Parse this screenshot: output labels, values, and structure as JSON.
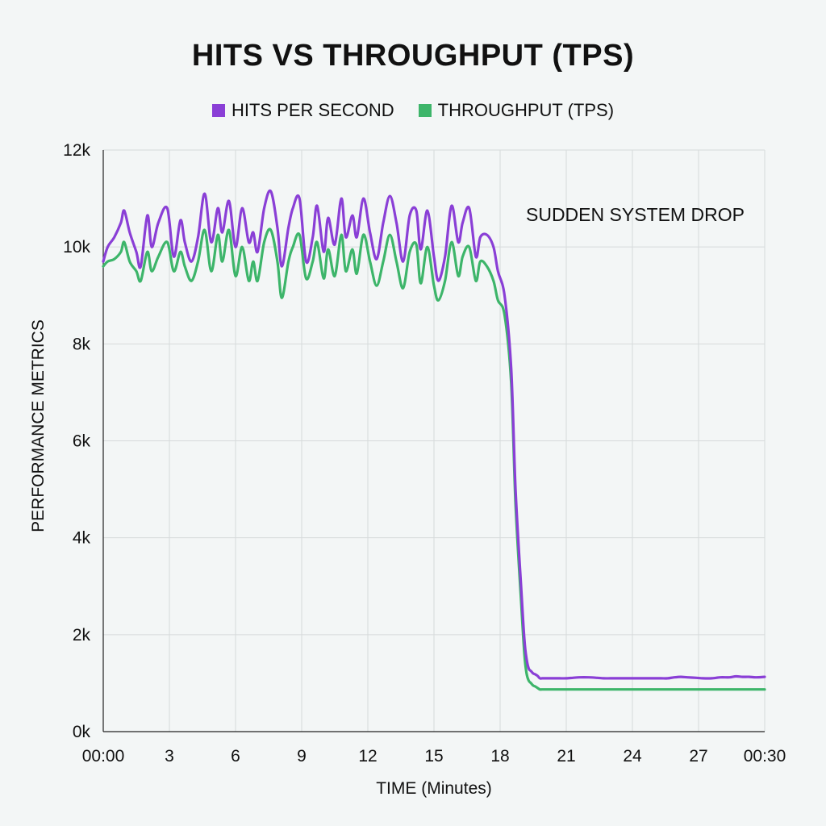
{
  "chart_data": {
    "type": "line",
    "title": "HITS VS THROUGHPUT (TPS)",
    "xlabel": "TIME (Minutes)",
    "ylabel": "PERFORMANCE METRICS",
    "x_ticks": [
      "00:00",
      "3",
      "6",
      "9",
      "12",
      "15",
      "18",
      "21",
      "24",
      "27",
      "00:30"
    ],
    "y_ticks": [
      "0k",
      "2k",
      "4k",
      "6k",
      "8k",
      "10k",
      "12k"
    ],
    "xlim": [
      0,
      30
    ],
    "ylim": [
      0,
      12000
    ],
    "grid": true,
    "legend_position": "top-center",
    "annotation": "SUDDEN SYSTEM DROP",
    "series": [
      {
        "name": "HITS PER SECOND",
        "color": "#8a3fd6",
        "x": [
          0,
          0.2,
          0.5,
          0.8,
          0.95,
          1.2,
          1.5,
          1.7,
          2.0,
          2.2,
          2.5,
          2.9,
          3.2,
          3.5,
          3.7,
          4.0,
          4.3,
          4.6,
          4.9,
          5.2,
          5.4,
          5.7,
          6.0,
          6.3,
          6.6,
          6.8,
          7.0,
          7.3,
          7.6,
          7.9,
          8.1,
          8.4,
          8.6,
          8.9,
          9.2,
          9.5,
          9.7,
          10.0,
          10.2,
          10.5,
          10.8,
          11.0,
          11.3,
          11.5,
          11.8,
          12.1,
          12.4,
          12.7,
          13.0,
          13.3,
          13.6,
          13.9,
          14.2,
          14.4,
          14.7,
          15.0,
          15.2,
          15.5,
          15.8,
          16.1,
          16.3,
          16.6,
          16.9,
          17.1,
          17.4,
          17.7,
          17.9,
          18.2,
          18.5,
          18.7,
          18.95,
          19.1,
          19.2,
          19.3,
          19.4,
          19.5,
          19.6,
          19.7,
          19.8,
          19.9,
          20.0,
          20.2,
          20.5,
          20.7,
          21.0,
          21.3,
          21.6,
          22.0,
          22.4,
          22.7,
          23.0,
          23.3,
          23.7,
          24.0,
          24.3,
          24.6,
          25.0,
          25.3,
          25.6,
          25.9,
          26.2,
          26.5,
          26.9,
          27.2,
          27.6,
          28.0,
          28.4,
          28.7,
          29.0,
          29.3,
          29.6,
          30.0
        ],
        "y": [
          9700,
          10000,
          10200,
          10500,
          10750,
          10300,
          9900,
          9600,
          10650,
          10000,
          10500,
          10800,
          9800,
          10550,
          10100,
          9700,
          10200,
          11100,
          10100,
          10800,
          10300,
          10950,
          10000,
          10800,
          10100,
          10300,
          9900,
          10800,
          11150,
          10400,
          9600,
          10400,
          10800,
          11000,
          9700,
          10200,
          10850,
          9900,
          10600,
          10050,
          11000,
          10200,
          10650,
          10200,
          11000,
          10300,
          9750,
          10500,
          11050,
          10500,
          9700,
          10650,
          10750,
          9950,
          10750,
          9800,
          9300,
          9800,
          10850,
          10100,
          10500,
          10800,
          9800,
          10200,
          10250,
          10000,
          9500,
          9000,
          7500,
          5000,
          3000,
          1900,
          1500,
          1300,
          1250,
          1200,
          1180,
          1150,
          1100,
          1100,
          1100,
          1100,
          1100,
          1100,
          1100,
          1110,
          1120,
          1120,
          1110,
          1100,
          1100,
          1100,
          1100,
          1100,
          1100,
          1100,
          1100,
          1100,
          1100,
          1120,
          1130,
          1120,
          1110,
          1100,
          1100,
          1120,
          1120,
          1140,
          1130,
          1130,
          1120,
          1130
        ]
      },
      {
        "name": "THROUGHPUT (TPS)",
        "color": "#3db56a",
        "x": [
          0,
          0.2,
          0.5,
          0.8,
          0.95,
          1.2,
          1.5,
          1.7,
          2.0,
          2.2,
          2.5,
          2.9,
          3.2,
          3.5,
          3.7,
          4.0,
          4.3,
          4.6,
          4.9,
          5.2,
          5.4,
          5.7,
          6.0,
          6.3,
          6.6,
          6.8,
          7.0,
          7.3,
          7.6,
          7.9,
          8.1,
          8.4,
          8.6,
          8.9,
          9.2,
          9.5,
          9.7,
          10.0,
          10.2,
          10.5,
          10.8,
          11.0,
          11.3,
          11.5,
          11.8,
          12.1,
          12.4,
          12.7,
          13.0,
          13.3,
          13.6,
          13.9,
          14.2,
          14.4,
          14.7,
          15.0,
          15.2,
          15.5,
          15.8,
          16.1,
          16.3,
          16.6,
          16.9,
          17.1,
          17.4,
          17.7,
          17.9,
          18.2,
          18.5,
          18.7,
          18.95,
          19.1,
          19.2,
          19.3,
          19.4,
          19.5,
          19.6,
          19.7,
          19.8,
          19.9,
          20.0,
          20.2,
          20.5,
          20.7,
          21.0,
          21.3,
          21.6,
          22.0,
          22.4,
          22.7,
          23.0,
          23.3,
          23.7,
          24.0,
          24.3,
          24.6,
          25.0,
          25.3,
          25.6,
          25.9,
          26.2,
          26.5,
          26.9,
          27.2,
          27.6,
          28.0,
          28.4,
          28.7,
          29.0,
          29.3,
          29.6,
          30.0
        ],
        "y": [
          9600,
          9700,
          9750,
          9900,
          10100,
          9700,
          9500,
          9300,
          9900,
          9500,
          9800,
          10100,
          9500,
          9900,
          9600,
          9300,
          9700,
          10350,
          9500,
          10250,
          9700,
          10350,
          9400,
          10000,
          9300,
          9700,
          9300,
          10100,
          10350,
          9700,
          8950,
          9700,
          10000,
          10250,
          9350,
          9700,
          10100,
          9350,
          9950,
          9400,
          10250,
          9500,
          9950,
          9450,
          10250,
          9700,
          9200,
          9700,
          10250,
          9700,
          9150,
          9900,
          10050,
          9250,
          10000,
          9200,
          8900,
          9300,
          10100,
          9400,
          9800,
          10000,
          9300,
          9700,
          9600,
          9300,
          8900,
          8600,
          7200,
          4700,
          2700,
          1600,
          1200,
          1050,
          1000,
          950,
          930,
          900,
          870,
          870,
          870,
          870,
          870,
          870,
          870,
          870,
          870,
          870,
          870,
          870,
          870,
          870,
          870,
          870,
          870,
          870,
          870,
          870,
          870,
          870,
          870,
          870,
          870,
          870,
          870,
          870,
          870,
          870,
          870,
          870,
          870,
          870
        ]
      }
    ]
  }
}
